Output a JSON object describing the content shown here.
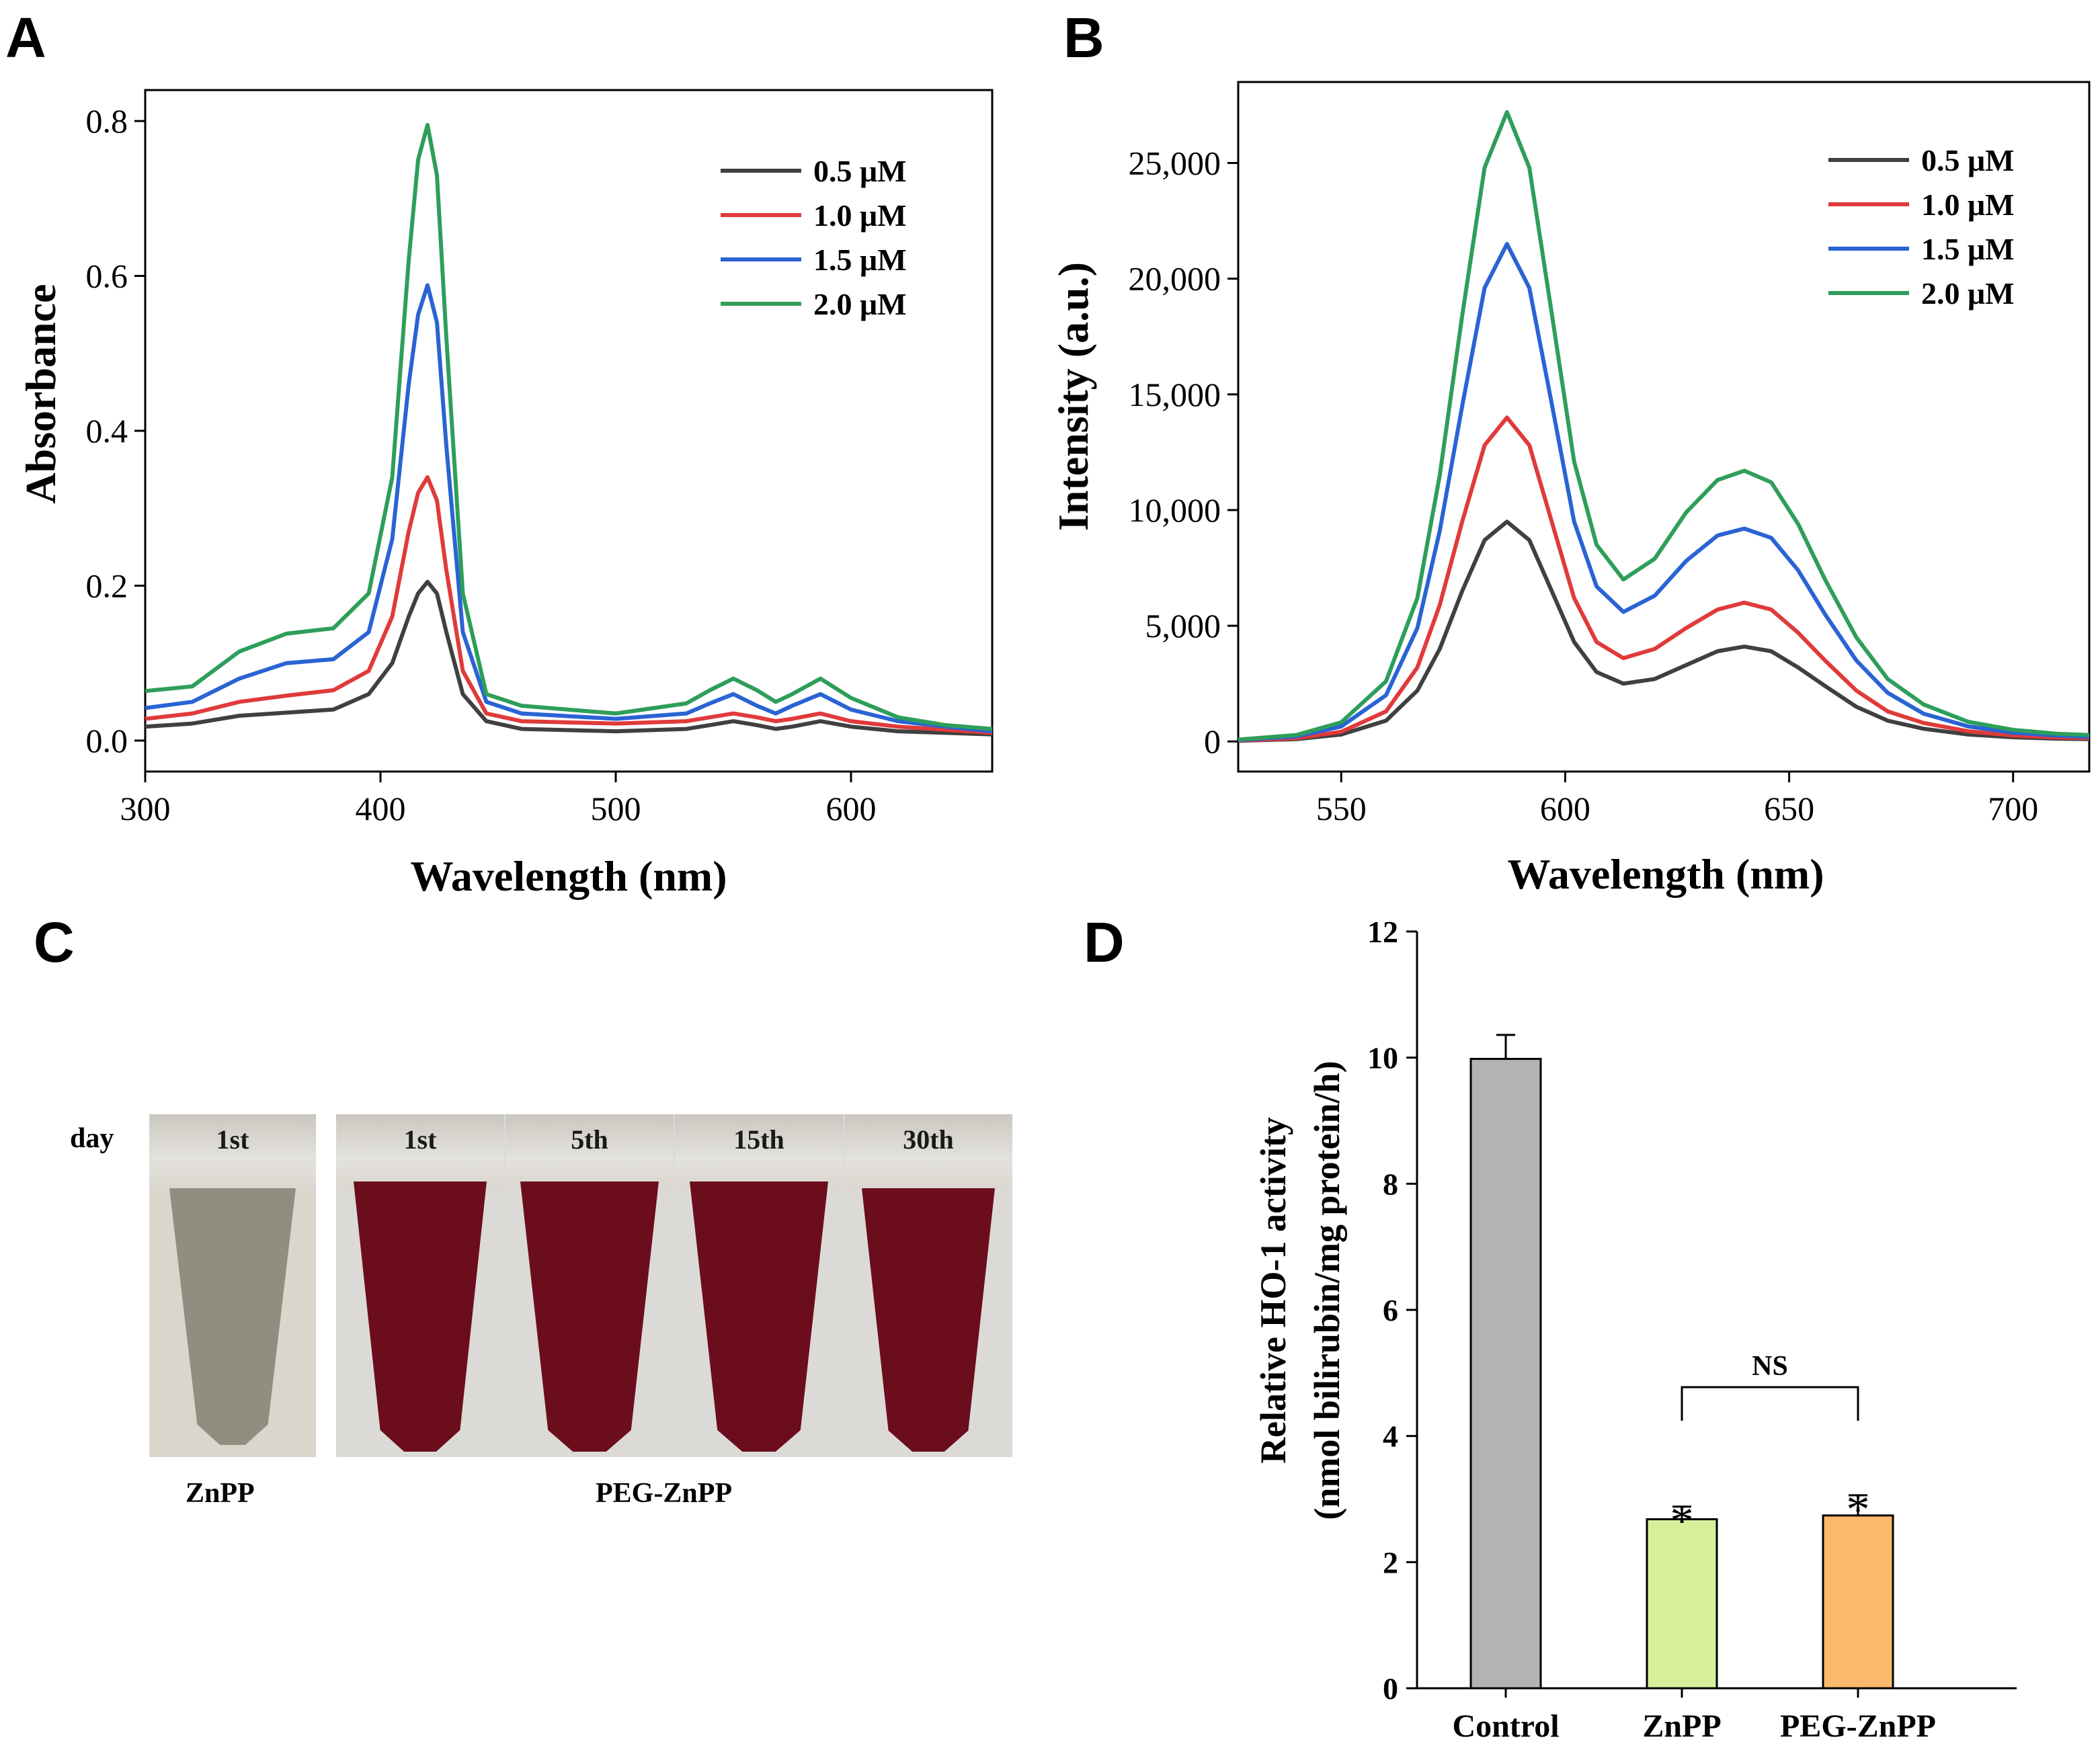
{
  "panels": {
    "A": {
      "letter": "A"
    },
    "B": {
      "letter": "B"
    },
    "C": {
      "letter": "C",
      "row_label": "day",
      "tubes": [
        {
          "label": "1st",
          "color": "#8f8e80"
        },
        {
          "label": "1st",
          "color": "#6b0d1c"
        },
        {
          "label": "5th",
          "color": "#6b0d1c"
        },
        {
          "label": "15th",
          "color": "#6b0d1c"
        },
        {
          "label": "30th",
          "color": "#6b0d1c"
        }
      ],
      "group_labels": [
        "ZnPP",
        "PEG-ZnPP"
      ]
    },
    "D": {
      "letter": "D"
    }
  },
  "chart_data": [
    {
      "id": "A",
      "type": "line",
      "xlabel": "Wavelength (nm)",
      "ylabel": "Absorbance",
      "xlim": [
        300,
        660
      ],
      "ylim": [
        -0.04,
        0.84
      ],
      "xticks": [
        "300",
        "400",
        "500",
        "600"
      ],
      "yticks": [
        "0.0",
        "0.2",
        "0.4",
        "0.6",
        "0.8"
      ],
      "legend_position": "top-right",
      "x": [
        300,
        320,
        340,
        360,
        380,
        395,
        405,
        412,
        416,
        420,
        424,
        428,
        435,
        445,
        460,
        500,
        530,
        540,
        550,
        560,
        568,
        575,
        587,
        600,
        620,
        640,
        660
      ],
      "series": [
        {
          "name": "0.5 μM",
          "color": "#404040",
          "values": [
            0.018,
            0.022,
            0.032,
            0.036,
            0.04,
            0.06,
            0.1,
            0.16,
            0.19,
            0.205,
            0.19,
            0.14,
            0.06,
            0.025,
            0.015,
            0.012,
            0.015,
            0.02,
            0.025,
            0.02,
            0.015,
            0.018,
            0.025,
            0.018,
            0.012,
            0.01,
            0.008
          ]
        },
        {
          "name": "1.0 μM",
          "color": "#e03a3a",
          "values": [
            0.028,
            0.035,
            0.05,
            0.058,
            0.065,
            0.09,
            0.16,
            0.27,
            0.32,
            0.34,
            0.31,
            0.22,
            0.09,
            0.035,
            0.025,
            0.022,
            0.025,
            0.03,
            0.035,
            0.03,
            0.025,
            0.028,
            0.035,
            0.025,
            0.018,
            0.014,
            0.01
          ]
        },
        {
          "name": "1.5 μM",
          "color": "#2a63d4",
          "values": [
            0.042,
            0.05,
            0.08,
            0.1,
            0.105,
            0.14,
            0.26,
            0.46,
            0.55,
            0.588,
            0.54,
            0.38,
            0.14,
            0.05,
            0.035,
            0.028,
            0.035,
            0.048,
            0.06,
            0.045,
            0.035,
            0.045,
            0.06,
            0.04,
            0.025,
            0.018,
            0.012
          ]
        },
        {
          "name": "2.0 μM",
          "color": "#2e9e5a",
          "values": [
            0.064,
            0.07,
            0.115,
            0.138,
            0.145,
            0.19,
            0.34,
            0.62,
            0.75,
            0.795,
            0.73,
            0.52,
            0.19,
            0.06,
            0.045,
            0.035,
            0.048,
            0.065,
            0.08,
            0.065,
            0.05,
            0.06,
            0.08,
            0.055,
            0.03,
            0.02,
            0.015
          ]
        }
      ]
    },
    {
      "id": "B",
      "type": "line",
      "xlabel": "Wavelength (nm)",
      "ylabel": "Intensity (a.u.)",
      "xlim": [
        527,
        717
      ],
      "ylim": [
        -1300,
        28500
      ],
      "xticks": [
        "550",
        "600",
        "650",
        "700"
      ],
      "yticks": [
        "0",
        "5,000",
        "10,000",
        "15,000",
        "20,000",
        "25,000"
      ],
      "legend_position": "top-right",
      "x": [
        527,
        540,
        550,
        560,
        567,
        572,
        577,
        582,
        587,
        592,
        597,
        602,
        607,
        613,
        620,
        627,
        634,
        640,
        646,
        652,
        658,
        665,
        672,
        680,
        690,
        700,
        710,
        717
      ],
      "series": [
        {
          "name": "0.5 μM",
          "color": "#404040",
          "values": [
            30,
            100,
            300,
            900,
            2200,
            4000,
            6500,
            8700,
            9500,
            8700,
            6500,
            4300,
            3000,
            2500,
            2700,
            3300,
            3900,
            4100,
            3900,
            3200,
            2400,
            1500,
            900,
            550,
            300,
            180,
            120,
            100
          ]
        },
        {
          "name": "1.0 μM",
          "color": "#e03a3a",
          "values": [
            40,
            140,
            420,
            1300,
            3200,
            5900,
            9500,
            12800,
            14000,
            12800,
            9500,
            6200,
            4300,
            3600,
            4000,
            4900,
            5700,
            6000,
            5700,
            4700,
            3500,
            2200,
            1300,
            800,
            440,
            260,
            170,
            140
          ]
        },
        {
          "name": "1.5 μM",
          "color": "#2a63d4",
          "values": [
            60,
            220,
            650,
            2000,
            4900,
            9100,
            14500,
            19600,
            21500,
            19600,
            14600,
            9500,
            6700,
            5600,
            6300,
            7800,
            8900,
            9200,
            8800,
            7400,
            5500,
            3500,
            2100,
            1200,
            650,
            380,
            250,
            200
          ]
        },
        {
          "name": "2.0 μM",
          "color": "#2e9e5a",
          "values": [
            80,
            280,
            830,
            2600,
            6200,
            11500,
            18400,
            24800,
            27200,
            24800,
            18500,
            12100,
            8500,
            7000,
            7900,
            9900,
            11300,
            11700,
            11200,
            9400,
            7000,
            4500,
            2700,
            1600,
            850,
            500,
            330,
            280
          ]
        }
      ]
    },
    {
      "id": "D",
      "type": "bar",
      "ylabel_lines": [
        "Relative HO-1 activity",
        "(nmol bilirubin/mg protein/h)"
      ],
      "ylim": [
        0,
        12
      ],
      "yticks": [
        "0",
        "2",
        "4",
        "6",
        "8",
        "10",
        "12"
      ],
      "categories": [
        "Control",
        "ZnPP",
        "PEG-ZnPP"
      ],
      "values": [
        9.98,
        2.68,
        2.74
      ],
      "errors": [
        0.38,
        0.2,
        0.32
      ],
      "colors": [
        "#b3b3b3",
        "#d6f09a",
        "#fbb96c"
      ],
      "significance_marks": [
        "",
        "*",
        "*"
      ],
      "bracket_label": "NS"
    }
  ]
}
